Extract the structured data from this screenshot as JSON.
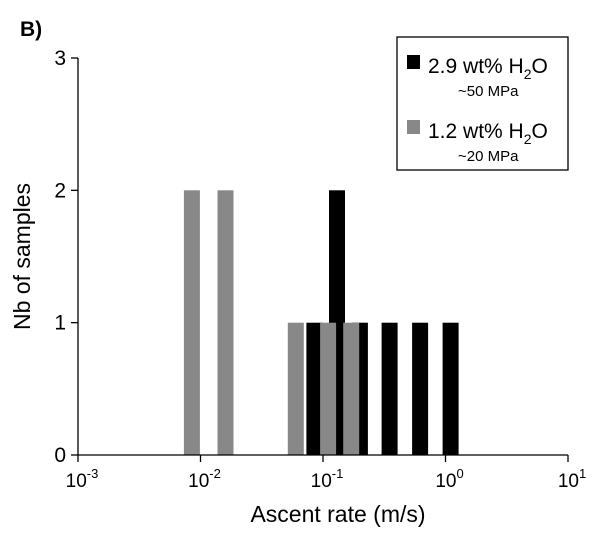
{
  "panel_label": "B)",
  "chart_data": {
    "type": "bar",
    "xlabel": "Ascent rate (m/s)",
    "ylabel": "Nb of samples",
    "x_scale": "log",
    "xlim": [
      0.001,
      10
    ],
    "ylim": [
      0,
      3
    ],
    "y_ticks": [
      "0",
      "1",
      "2",
      "3"
    ],
    "x_ticks": [
      {
        "value": 0.001,
        "base": "10",
        "exp": "-3"
      },
      {
        "value": 0.01,
        "base": "10",
        "exp": "-2"
      },
      {
        "value": 0.1,
        "base": "10",
        "exp": "-1"
      },
      {
        "value": 1,
        "base": "10",
        "exp": "0"
      },
      {
        "value": 10,
        "base": "10",
        "exp": "1"
      }
    ],
    "grid": false,
    "legend_position": "top-right",
    "series": [
      {
        "name": "2.9 wt% H2O",
        "legend": {
          "prefix": "2.9 wt% H",
          "sub": "2",
          "suffix": "O",
          "note": "~50 MPa"
        },
        "color": "#000000",
        "x": [
          0.085,
          0.13,
          0.2,
          0.35,
          0.62,
          1.1
        ],
        "values": [
          1,
          2,
          1,
          1,
          1,
          1
        ]
      },
      {
        "name": "1.2 wt% H2O",
        "legend": {
          "prefix": "1.2 wt% H",
          "sub": "2",
          "suffix": "O",
          "note": "~20 MPa"
        },
        "color": "#888888",
        "x": [
          0.0085,
          0.016,
          0.06,
          0.11,
          0.17
        ],
        "values": [
          2,
          2,
          1,
          1,
          1
        ]
      }
    ]
  }
}
